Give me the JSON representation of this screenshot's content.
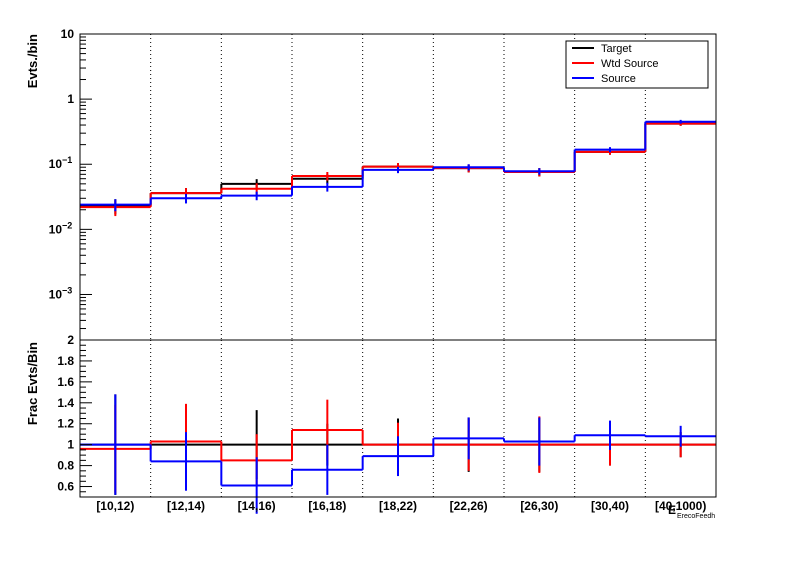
{
  "colors": {
    "target": "#000000",
    "wtd_source": "#ff0000",
    "source": "#0000ff",
    "frame": "#000000"
  },
  "chart_data": [
    {
      "type": "step-histogram",
      "panel": "top",
      "ylabel": "Evts./bin",
      "yscale": "log",
      "ylim": [
        0.0002,
        10
      ],
      "y_ticks": [
        {
          "value": 10,
          "label": "10",
          "exp": ""
        },
        {
          "value": 1,
          "label": "1",
          "exp": ""
        },
        {
          "value": 0.1,
          "label": "10",
          "exp": "−1"
        },
        {
          "value": 0.01,
          "label": "10",
          "exp": "−2"
        },
        {
          "value": 0.001,
          "label": "10",
          "exp": "−3"
        }
      ],
      "categories": [
        "[10,12)",
        "[12,14)",
        "[14,16)",
        "[16,18)",
        "[18,22)",
        "[22,26)",
        "[26,30)",
        "[30,40)",
        "[40,1000)"
      ],
      "xlabel": "E",
      "xlabel_sub": "ErecoFeedh",
      "legend": {
        "position": "top-right",
        "entries": [
          "Target",
          "Wtd Source",
          "Source"
        ]
      },
      "series": [
        {
          "name": "Target",
          "values": [
            0.023,
            0.036,
            0.05,
            0.06,
            0.092,
            0.087,
            0.076,
            0.155,
            0.42
          ],
          "errors": [
            0.006,
            0.007,
            0.009,
            0.01,
            0.012,
            0.012,
            0.011,
            0.015,
            0.03
          ]
        },
        {
          "name": "Wtd Source",
          "values": [
            0.022,
            0.036,
            0.042,
            0.066,
            0.092,
            0.087,
            0.076,
            0.155,
            0.42
          ],
          "errors": [
            0.006,
            0.007,
            0.009,
            0.01,
            0.012,
            0.012,
            0.011,
            0.015,
            0.03
          ]
        },
        {
          "name": "Source",
          "values": [
            0.024,
            0.03,
            0.033,
            0.045,
            0.082,
            0.09,
            0.078,
            0.168,
            0.45
          ],
          "errors": [
            0.005,
            0.005,
            0.005,
            0.007,
            0.009,
            0.01,
            0.009,
            0.015,
            0.03
          ]
        }
      ]
    },
    {
      "type": "step-histogram",
      "panel": "bottom",
      "ylabel": "Frac Evts/Bin",
      "yscale": "linear",
      "ylim": [
        0.5,
        2
      ],
      "y_ticks": [
        0.6,
        0.8,
        1,
        1.2,
        1.4,
        1.6,
        1.8,
        2
      ],
      "y_tick_labels": [
        "0.6",
        "0.8",
        "1",
        "1.2",
        "1.4",
        "1.6",
        "1.8",
        "2"
      ],
      "categories": [
        "[10,12)",
        "[12,14)",
        "[14,16)",
        "[16,18)",
        "[18,22)",
        "[22,26)",
        "[26,30)",
        "[30,40)",
        "[40,1000)"
      ],
      "series": [
        {
          "name": "Target",
          "values": [
            1,
            1,
            1,
            1,
            1,
            1,
            1,
            1,
            1
          ],
          "errors": [
            0.48,
            0.14,
            0.33,
            0.2,
            0.25,
            0.26,
            0.26,
            0.2,
            0.12
          ]
        },
        {
          "name": "Wtd Source",
          "values": [
            0.96,
            1.03,
            0.85,
            1.14,
            1.0,
            1.0,
            1.0,
            1.0,
            1.0
          ],
          "errors": [
            0.42,
            0.36,
            0.25,
            0.29,
            0.21,
            0.25,
            0.27,
            0.2,
            0.12
          ]
        },
        {
          "name": "Source",
          "values": [
            1.0,
            0.84,
            0.61,
            0.76,
            0.89,
            1.06,
            1.03,
            1.09,
            1.08
          ],
          "errors": [
            0.48,
            0.28,
            0.27,
            0.24,
            0.19,
            0.2,
            0.23,
            0.14,
            0.1
          ]
        }
      ]
    }
  ]
}
